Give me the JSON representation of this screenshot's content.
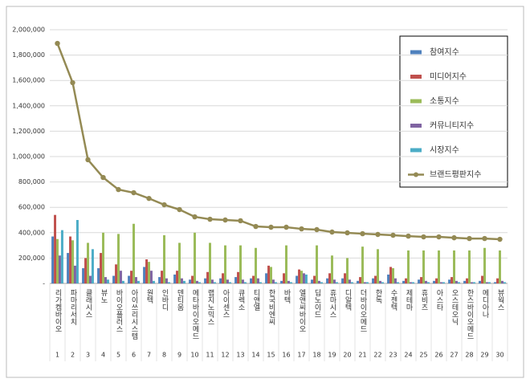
{
  "chart_data": {
    "type": "bar_line",
    "categories": [
      "리가켐바이오",
      "파마리서치",
      "클래시스",
      "뷰노",
      "바이오플러스",
      "아이쓰리시스템",
      "원텍",
      "인바디",
      "덴티움",
      "메타바이오메드",
      "랩지노믹스",
      "아이센스",
      "큐렉소",
      "티앤엘",
      "한국비엔씨",
      "바텍",
      "엘앤씨바이오",
      "딥노이드",
      "휴마시스",
      "디알텍",
      "더바이오메드",
      "한독",
      "수젠텍",
      "제테마",
      "휴비츠",
      "아스타",
      "오스테오닉",
      "한스바이오메드",
      "메디아나",
      "뷰웍스"
    ],
    "ranks": [
      1,
      2,
      3,
      4,
      5,
      6,
      7,
      8,
      9,
      10,
      11,
      12,
      13,
      14,
      15,
      16,
      17,
      18,
      19,
      20,
      21,
      22,
      23,
      24,
      25,
      26,
      27,
      28,
      29,
      30
    ],
    "ylim": [
      0,
      2000000
    ],
    "yticks": [
      {
        "value": 0,
        "label": "-"
      },
      {
        "value": 200000,
        "label": "200,000"
      },
      {
        "value": 400000,
        "label": "400,000"
      },
      {
        "value": 600000,
        "label": "600,000"
      },
      {
        "value": 800000,
        "label": "800,000"
      },
      {
        "value": 1000000,
        "label": "1,000,000"
      },
      {
        "value": 1200000,
        "label": "1,200,000"
      },
      {
        "value": 1400000,
        "label": "1,400,000"
      },
      {
        "value": 1600000,
        "label": "1,600,000"
      },
      {
        "value": 1800000,
        "label": "1,800,000"
      },
      {
        "value": 2000000,
        "label": "2,000,000"
      }
    ],
    "grid": true,
    "legend": "upper right",
    "series": [
      {
        "name": "참여지수",
        "type": "bar",
        "color": "#4f81bd",
        "values": [
          370000,
          240000,
          120000,
          120000,
          60000,
          60000,
          130000,
          50000,
          70000,
          30000,
          40000,
          40000,
          50000,
          40000,
          80000,
          20000,
          60000,
          30000,
          40000,
          40000,
          20000,
          40000,
          70000,
          20000,
          30000,
          20000,
          30000,
          20000,
          20000,
          10000
        ]
      },
      {
        "name": "미디어지수",
        "type": "bar",
        "color": "#c0504d",
        "values": [
          540000,
          370000,
          200000,
          240000,
          150000,
          100000,
          190000,
          100000,
          100000,
          60000,
          90000,
          80000,
          90000,
          60000,
          140000,
          80000,
          110000,
          60000,
          80000,
          80000,
          50000,
          60000,
          130000,
          40000,
          50000,
          40000,
          50000,
          40000,
          60000,
          40000
        ]
      },
      {
        "name": "소통지수",
        "type": "bar",
        "color": "#9bbb59",
        "values": [
          350000,
          340000,
          320000,
          400000,
          390000,
          470000,
          170000,
          380000,
          320000,
          400000,
          320000,
          300000,
          300000,
          280000,
          130000,
          300000,
          100000,
          300000,
          220000,
          200000,
          290000,
          270000,
          120000,
          260000,
          260000,
          260000,
          260000,
          260000,
          280000,
          260000
        ]
      },
      {
        "name": "커뮤니티지수",
        "type": "bar",
        "color": "#8064a2",
        "values": [
          220000,
          140000,
          60000,
          50000,
          100000,
          50000,
          100000,
          40000,
          40000,
          20000,
          30000,
          30000,
          30000,
          40000,
          30000,
          20000,
          80000,
          20000,
          30000,
          30000,
          10000,
          20000,
          40000,
          10000,
          20000,
          10000,
          20000,
          10000,
          10000,
          20000
        ]
      },
      {
        "name": "시장지수",
        "type": "bar",
        "color": "#4bacc6",
        "values": [
          420000,
          500000,
          270000,
          30000,
          20000,
          20000,
          20000,
          10000,
          20000,
          10000,
          10000,
          10000,
          10000,
          10000,
          10000,
          10000,
          70000,
          10000,
          10000,
          10000,
          10000,
          10000,
          10000,
          10000,
          10000,
          10000,
          10000,
          10000,
          10000,
          10000
        ]
      },
      {
        "name": "브랜드평판지수",
        "type": "line",
        "color": "#948a54",
        "values": [
          1892000,
          1582000,
          975000,
          835000,
          740000,
          715000,
          670000,
          620000,
          582000,
          525000,
          506000,
          500000,
          494000,
          449000,
          443000,
          443000,
          430000,
          424000,
          405000,
          399000,
          392000,
          386000,
          380000,
          373000,
          367000,
          367000,
          360000,
          354000,
          354000,
          348000
        ]
      }
    ]
  }
}
